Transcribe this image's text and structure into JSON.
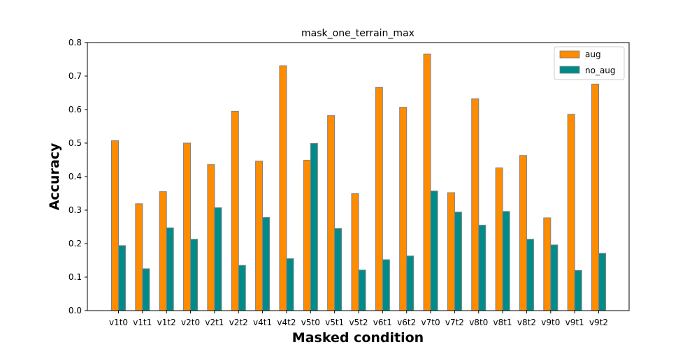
{
  "chart_data": {
    "type": "bar",
    "title": "mask_one_terrain_max",
    "xlabel": "Masked condition",
    "ylabel": "Accuracy",
    "ylim": [
      0,
      0.8
    ],
    "yticks": [
      "0.0",
      "0.1",
      "0.2",
      "0.3",
      "0.4",
      "0.5",
      "0.6",
      "0.7",
      "0.8"
    ],
    "categories": [
      "v1t0",
      "v1t1",
      "v1t2",
      "v2t0",
      "v2t1",
      "v2t2",
      "v4t1",
      "v4t2",
      "v5t0",
      "v5t1",
      "v5t2",
      "v6t1",
      "v6t2",
      "v7t0",
      "v7t2",
      "v8t0",
      "v8t1",
      "v8t2",
      "v9t0",
      "v9t1",
      "v9t2"
    ],
    "series": [
      {
        "name": "aug",
        "color": "#ff8c00",
        "values": [
          0.507,
          0.319,
          0.355,
          0.5,
          0.436,
          0.595,
          0.446,
          0.731,
          0.449,
          0.582,
          0.349,
          0.666,
          0.607,
          0.766,
          0.352,
          0.632,
          0.426,
          0.463,
          0.277,
          0.586,
          0.676
        ]
      },
      {
        "name": "no_aug",
        "color": "#008b8b",
        "values": [
          0.194,
          0.125,
          0.247,
          0.213,
          0.307,
          0.135,
          0.278,
          0.155,
          0.499,
          0.245,
          0.121,
          0.152,
          0.163,
          0.357,
          0.294,
          0.255,
          0.296,
          0.213,
          0.196,
          0.12,
          0.171
        ]
      }
    ],
    "bar_edge_color": "#808080",
    "grid": false,
    "legend_position": "top-right"
  }
}
